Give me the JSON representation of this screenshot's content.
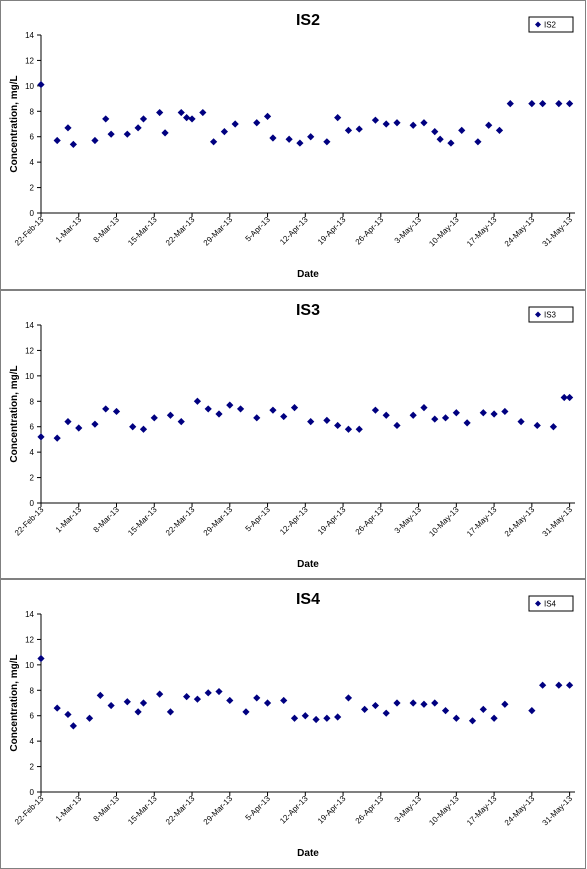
{
  "chart_data": [
    {
      "type": "scatter",
      "title": "IS2",
      "xlabel": "Date",
      "ylabel": "Concentration, mg/L",
      "ylim": [
        0,
        14
      ],
      "yticks": [
        "0",
        "2",
        "4",
        "6",
        "8",
        "10",
        "12",
        "14"
      ],
      "xticks": [
        "22-Feb-13",
        "1-Mar-13",
        "8-Mar-13",
        "15-Mar-13",
        "22-Mar-13",
        "29-Mar-13",
        "5-Apr-13",
        "12-Apr-13",
        "19-Apr-13",
        "26-Apr-13",
        "3-May-13",
        "10-May-13",
        "17-May-13",
        "24-May-13",
        "31-May-13"
      ],
      "xlim": [
        "22-Feb-13",
        "1-Jun-13"
      ],
      "legend": "top-right",
      "grid": false,
      "color": "#000080",
      "series": [
        {
          "name": "IS2",
          "x": [
            "22-Feb-13",
            "25-Feb-13",
            "27-Feb-13",
            "28-Feb-13",
            "4-Mar-13",
            "6-Mar-13",
            "7-Mar-13",
            "10-Mar-13",
            "12-Mar-13",
            "13-Mar-13",
            "16-Mar-13",
            "17-Mar-13",
            "20-Mar-13",
            "21-Mar-13",
            "22-Mar-13",
            "24-Mar-13",
            "26-Mar-13",
            "28-Mar-13",
            "30-Mar-13",
            "3-Apr-13",
            "5-Apr-13",
            "6-Apr-13",
            "9-Apr-13",
            "11-Apr-13",
            "13-Apr-13",
            "16-Apr-13",
            "18-Apr-13",
            "20-Apr-13",
            "22-Apr-13",
            "25-Apr-13",
            "27-Apr-13",
            "29-Apr-13",
            "2-May-13",
            "4-May-13",
            "6-May-13",
            "7-May-13",
            "9-May-13",
            "11-May-13",
            "14-May-13",
            "16-May-13",
            "18-May-13",
            "20-May-13",
            "24-May-13",
            "26-May-13",
            "29-May-13",
            "31-May-13"
          ],
          "y": [
            10.1,
            5.7,
            6.7,
            5.4,
            5.7,
            7.4,
            6.2,
            6.2,
            6.7,
            7.4,
            7.9,
            6.3,
            7.9,
            7.5,
            7.4,
            7.9,
            5.6,
            6.4,
            7.0,
            7.1,
            7.6,
            5.9,
            5.8,
            5.5,
            6.0,
            5.6,
            7.5,
            6.5,
            6.6,
            7.3,
            7.0,
            7.1,
            6.9,
            7.1,
            6.4,
            5.8,
            5.5,
            6.5,
            5.6,
            6.9,
            6.5,
            8.6,
            8.6,
            8.6,
            8.6,
            8.6
          ]
        }
      ]
    },
    {
      "type": "scatter",
      "title": "IS3",
      "xlabel": "Date",
      "ylabel": "Concentration, mg/L",
      "ylim": [
        0,
        14
      ],
      "yticks": [
        "0",
        "2",
        "4",
        "6",
        "8",
        "10",
        "12",
        "14"
      ],
      "xticks": [
        "22-Feb-13",
        "1-Mar-13",
        "8-Mar-13",
        "15-Mar-13",
        "22-Mar-13",
        "29-Mar-13",
        "5-Apr-13",
        "12-Apr-13",
        "19-Apr-13",
        "26-Apr-13",
        "3-May-13",
        "10-May-13",
        "17-May-13",
        "24-May-13",
        "31-May-13"
      ],
      "xlim": [
        "22-Feb-13",
        "1-Jun-13"
      ],
      "legend": "top-right",
      "grid": false,
      "color": "#000080",
      "series": [
        {
          "name": "IS3",
          "x": [
            "22-Feb-13",
            "25-Feb-13",
            "27-Feb-13",
            "1-Mar-13",
            "4-Mar-13",
            "6-Mar-13",
            "8-Mar-13",
            "11-Mar-13",
            "13-Mar-13",
            "15-Mar-13",
            "18-Mar-13",
            "20-Mar-13",
            "23-Mar-13",
            "25-Mar-13",
            "27-Mar-13",
            "29-Mar-13",
            "31-Mar-13",
            "3-Apr-13",
            "6-Apr-13",
            "8-Apr-13",
            "10-Apr-13",
            "13-Apr-13",
            "16-Apr-13",
            "18-Apr-13",
            "20-Apr-13",
            "22-Apr-13",
            "25-Apr-13",
            "27-Apr-13",
            "29-Apr-13",
            "2-May-13",
            "4-May-13",
            "6-May-13",
            "8-May-13",
            "10-May-13",
            "12-May-13",
            "15-May-13",
            "17-May-13",
            "19-May-13",
            "22-May-13",
            "25-May-13",
            "28-May-13",
            "30-May-13",
            "31-May-13"
          ],
          "y": [
            5.2,
            5.1,
            6.4,
            5.9,
            6.2,
            7.4,
            7.2,
            6.0,
            5.8,
            6.7,
            6.9,
            6.4,
            8.0,
            7.4,
            7.0,
            7.7,
            7.4,
            6.7,
            7.3,
            6.8,
            7.5,
            6.4,
            6.5,
            6.1,
            5.8,
            5.8,
            7.3,
            6.9,
            6.1,
            6.9,
            7.5,
            6.6,
            6.7,
            7.1,
            6.3,
            7.1,
            7.0,
            7.2,
            6.4,
            6.1,
            6.0,
            8.3,
            8.3
          ]
        }
      ]
    },
    {
      "type": "scatter",
      "title": "IS4",
      "xlabel": "Date",
      "ylabel": "Concentration, mg/L",
      "ylim": [
        0,
        14
      ],
      "yticks": [
        "0",
        "2",
        "4",
        "6",
        "8",
        "10",
        "12",
        "14"
      ],
      "xticks": [
        "22-Feb-13",
        "1-Mar-13",
        "8-Mar-13",
        "15-Mar-13",
        "22-Mar-13",
        "29-Mar-13",
        "5-Apr-13",
        "12-Apr-13",
        "19-Apr-13",
        "26-Apr-13",
        "3-May-13",
        "10-May-13",
        "17-May-13",
        "24-May-13",
        "31-May-13"
      ],
      "xlim": [
        "22-Feb-13",
        "1-Jun-13"
      ],
      "legend": "top-right",
      "grid": false,
      "color": "#000080",
      "series": [
        {
          "name": "IS4",
          "x": [
            "22-Feb-13",
            "25-Feb-13",
            "27-Feb-13",
            "28-Feb-13",
            "3-Mar-13",
            "5-Mar-13",
            "7-Mar-13",
            "10-Mar-13",
            "12-Mar-13",
            "13-Mar-13",
            "16-Mar-13",
            "18-Mar-13",
            "21-Mar-13",
            "23-Mar-13",
            "25-Mar-13",
            "27-Mar-13",
            "29-Mar-13",
            "1-Apr-13",
            "3-Apr-13",
            "5-Apr-13",
            "8-Apr-13",
            "10-Apr-13",
            "12-Apr-13",
            "14-Apr-13",
            "16-Apr-13",
            "18-Apr-13",
            "20-Apr-13",
            "23-Apr-13",
            "25-Apr-13",
            "27-Apr-13",
            "29-Apr-13",
            "2-May-13",
            "4-May-13",
            "6-May-13",
            "8-May-13",
            "10-May-13",
            "13-May-13",
            "15-May-13",
            "17-May-13",
            "19-May-13",
            "24-May-13",
            "26-May-13",
            "29-May-13",
            "31-May-13"
          ],
          "y": [
            10.5,
            6.6,
            6.1,
            5.2,
            5.8,
            7.6,
            6.8,
            7.1,
            6.3,
            7.0,
            7.7,
            6.3,
            7.5,
            7.3,
            7.8,
            7.9,
            7.2,
            6.3,
            7.4,
            7.0,
            7.2,
            5.8,
            6.0,
            5.7,
            5.8,
            5.9,
            7.4,
            6.5,
            6.8,
            6.2,
            7.0,
            7.0,
            6.9,
            7.0,
            6.4,
            5.8,
            5.6,
            6.5,
            5.8,
            6.9,
            6.4,
            8.4,
            8.4,
            8.4
          ]
        }
      ]
    }
  ]
}
